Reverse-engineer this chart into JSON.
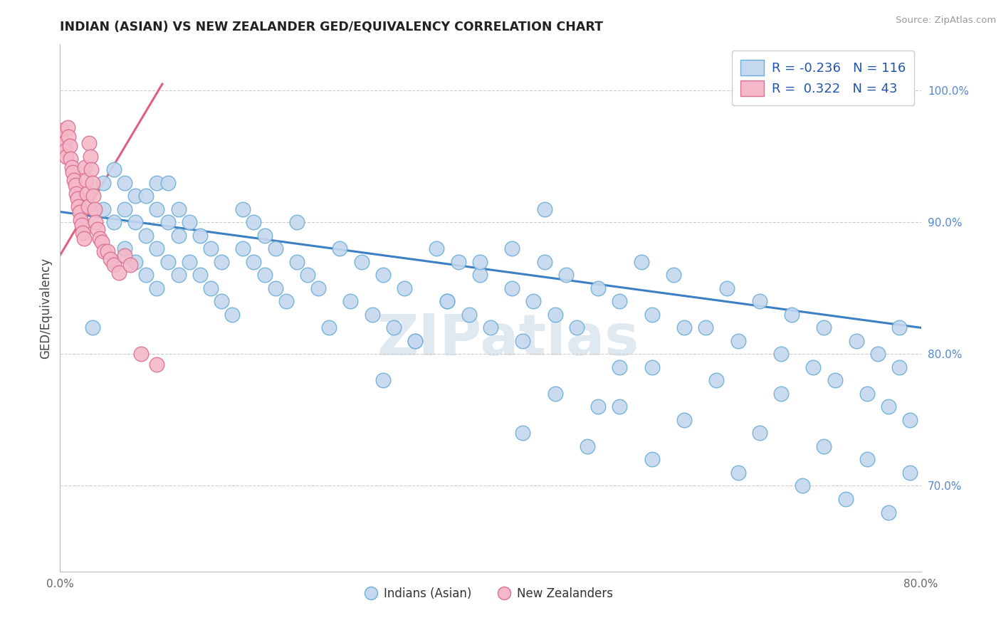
{
  "title": "INDIAN (ASIAN) VS NEW ZEALANDER GED/EQUIVALENCY CORRELATION CHART",
  "source": "Source: ZipAtlas.com",
  "ylabel": "GED/Equivalency",
  "x_min": 0.0,
  "x_max": 0.8,
  "y_min": 0.635,
  "y_max": 1.035,
  "y_ticks": [
    0.7,
    0.8,
    0.9,
    1.0
  ],
  "y_tick_labels": [
    "70.0%",
    "80.0%",
    "90.0%",
    "100.0%"
  ],
  "legend_r1": "-0.236",
  "legend_n1": "116",
  "legend_r2": "0.322",
  "legend_n2": "43",
  "color_blue_fill": "#c5d8ef",
  "color_blue_edge": "#6aaed6",
  "color_pink_fill": "#f4b8c8",
  "color_pink_edge": "#d97090",
  "color_blue_line": "#3b7fc4",
  "color_pink_line": "#e06080",
  "watermark": "ZIPatlas",
  "blue_line_x0": 0.0,
  "blue_line_x1": 0.8,
  "blue_line_y0": 0.908,
  "blue_line_y1": 0.82,
  "pink_line_x0": 0.0,
  "pink_line_x1": 0.095,
  "pink_line_y0": 0.875,
  "pink_line_y1": 1.005,
  "blue_scatter_x": [
    0.03,
    0.04,
    0.04,
    0.05,
    0.05,
    0.05,
    0.06,
    0.06,
    0.06,
    0.07,
    0.07,
    0.07,
    0.08,
    0.08,
    0.08,
    0.09,
    0.09,
    0.09,
    0.09,
    0.1,
    0.1,
    0.1,
    0.11,
    0.11,
    0.11,
    0.12,
    0.12,
    0.13,
    0.13,
    0.14,
    0.14,
    0.15,
    0.15,
    0.16,
    0.17,
    0.17,
    0.18,
    0.18,
    0.19,
    0.19,
    0.2,
    0.2,
    0.21,
    0.22,
    0.22,
    0.23,
    0.24,
    0.25,
    0.26,
    0.27,
    0.28,
    0.29,
    0.3,
    0.31,
    0.32,
    0.33,
    0.35,
    0.36,
    0.37,
    0.38,
    0.39,
    0.4,
    0.42,
    0.43,
    0.44,
    0.45,
    0.46,
    0.47,
    0.48,
    0.5,
    0.52,
    0.54,
    0.55,
    0.57,
    0.6,
    0.62,
    0.63,
    0.65,
    0.67,
    0.68,
    0.7,
    0.71,
    0.72,
    0.74,
    0.75,
    0.76,
    0.77,
    0.78,
    0.78,
    0.79,
    0.5,
    0.52,
    0.55,
    0.58,
    0.61,
    0.63,
    0.65,
    0.67,
    0.69,
    0.71,
    0.73,
    0.75,
    0.77,
    0.79,
    0.43,
    0.46,
    0.49,
    0.52,
    0.55,
    0.58,
    0.3,
    0.33,
    0.36,
    0.39,
    0.42,
    0.45
  ],
  "blue_scatter_y": [
    0.82,
    0.91,
    0.93,
    0.87,
    0.9,
    0.94,
    0.88,
    0.91,
    0.93,
    0.87,
    0.9,
    0.92,
    0.86,
    0.89,
    0.92,
    0.85,
    0.88,
    0.91,
    0.93,
    0.87,
    0.9,
    0.93,
    0.86,
    0.89,
    0.91,
    0.87,
    0.9,
    0.86,
    0.89,
    0.85,
    0.88,
    0.84,
    0.87,
    0.83,
    0.88,
    0.91,
    0.87,
    0.9,
    0.86,
    0.89,
    0.85,
    0.88,
    0.84,
    0.87,
    0.9,
    0.86,
    0.85,
    0.82,
    0.88,
    0.84,
    0.87,
    0.83,
    0.86,
    0.82,
    0.85,
    0.81,
    0.88,
    0.84,
    0.87,
    0.83,
    0.86,
    0.82,
    0.85,
    0.81,
    0.84,
    0.87,
    0.83,
    0.86,
    0.82,
    0.85,
    0.84,
    0.87,
    0.83,
    0.86,
    0.82,
    0.85,
    0.81,
    0.84,
    0.8,
    0.83,
    0.79,
    0.82,
    0.78,
    0.81,
    0.77,
    0.8,
    0.76,
    0.79,
    0.82,
    0.75,
    0.76,
    0.79,
    0.72,
    0.75,
    0.78,
    0.71,
    0.74,
    0.77,
    0.7,
    0.73,
    0.69,
    0.72,
    0.68,
    0.71,
    0.74,
    0.77,
    0.73,
    0.76,
    0.79,
    0.82,
    0.78,
    0.81,
    0.84,
    0.87,
    0.88,
    0.91
  ],
  "pink_scatter_x": [
    0.002,
    0.004,
    0.005,
    0.006,
    0.007,
    0.008,
    0.009,
    0.01,
    0.011,
    0.012,
    0.013,
    0.014,
    0.015,
    0.016,
    0.017,
    0.018,
    0.019,
    0.02,
    0.021,
    0.022,
    0.023,
    0.024,
    0.025,
    0.026,
    0.027,
    0.028,
    0.029,
    0.03,
    0.031,
    0.032,
    0.033,
    0.035,
    0.037,
    0.039,
    0.041,
    0.044,
    0.047,
    0.05,
    0.055,
    0.06,
    0.065,
    0.075,
    0.09
  ],
  "pink_scatter_y": [
    0.97,
    0.96,
    0.955,
    0.95,
    0.972,
    0.965,
    0.958,
    0.948,
    0.942,
    0.938,
    0.932,
    0.928,
    0.922,
    0.918,
    0.912,
    0.908,
    0.902,
    0.898,
    0.892,
    0.888,
    0.942,
    0.932,
    0.922,
    0.912,
    0.96,
    0.95,
    0.94,
    0.93,
    0.92,
    0.91,
    0.9,
    0.895,
    0.888,
    0.885,
    0.878,
    0.878,
    0.872,
    0.868,
    0.862,
    0.875,
    0.868,
    0.8,
    0.792
  ]
}
